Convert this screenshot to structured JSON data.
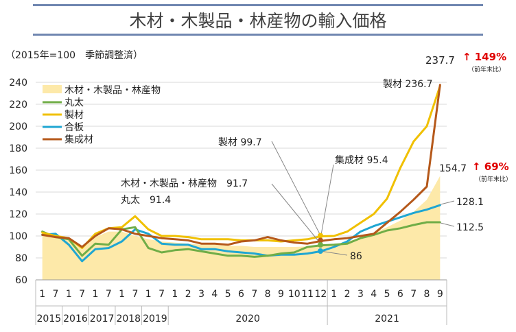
{
  "title": "木材・木製品・林産物の輸入価格",
  "subtitle": "（2015年=100　季節調整済）",
  "chart_data": {
    "type": "line",
    "ylim": [
      60,
      240
    ],
    "yticks": [
      "60",
      "80",
      "100",
      "120",
      "140",
      "160",
      "180",
      "200",
      "220",
      "240"
    ],
    "x_labels": [
      "1",
      "7",
      "1",
      "7",
      "1",
      "7",
      "1",
      "7",
      "1",
      "7",
      "1",
      "2",
      "3",
      "4",
      "5",
      "6",
      "7",
      "8",
      "9",
      "10",
      "11",
      "12",
      "1",
      "2",
      "3",
      "4",
      "5",
      "6",
      "7",
      "8",
      "9"
    ],
    "year_labels": [
      "2015",
      "2016",
      "2017",
      "2018",
      "2019",
      "2020",
      "2021"
    ],
    "legend": [
      "木材・木製品・林産物",
      "丸太",
      "製材",
      "合板",
      "集成材"
    ],
    "series": [
      {
        "name": "木材・木製品・林産物",
        "kind": "area",
        "color": "#fde9a9",
        "values": [
          102,
          101,
          97,
          90,
          99,
          104,
          104,
          100,
          97,
          95,
          94,
          93,
          92,
          92,
          91,
          91,
          90,
          90,
          90,
          90,
          90.5,
          91.7,
          92,
          95,
          98,
          103,
          108,
          114,
          122,
          133,
          154.7
        ]
      },
      {
        "name": "丸太",
        "kind": "line",
        "color": "#70ad47",
        "values": [
          104,
          99,
          97,
          82,
          93,
          92,
          106,
          108,
          89,
          85,
          87,
          88,
          86,
          84,
          82,
          82,
          81,
          82,
          84,
          85,
          90,
          91.4,
          92,
          93,
          98,
          101,
          105,
          107,
          110,
          112.5,
          112.5
        ]
      },
      {
        "name": "製材",
        "kind": "line",
        "color": "#f0c000",
        "values": [
          103,
          100,
          98,
          89,
          102,
          107,
          108,
          118,
          106,
          100,
          100,
          99,
          97,
          97,
          97,
          96,
          96,
          96,
          95,
          96,
          97,
          99.7,
          100,
          104,
          112,
          120,
          134,
          162,
          186,
          200,
          236.7
        ]
      },
      {
        "name": "合板",
        "kind": "line",
        "color": "#1fa6d2",
        "values": [
          101,
          102,
          92,
          77,
          88,
          89,
          95,
          106,
          102,
          93,
          92,
          92,
          88,
          88,
          86,
          85,
          84,
          82,
          83,
          83,
          84,
          86,
          90,
          95,
          104,
          109,
          113,
          117,
          121,
          124,
          128.1
        ]
      },
      {
        "name": "集成材",
        "kind": "line",
        "color": "#b5581a",
        "values": [
          101,
          99,
          98,
          90,
          100,
          107,
          106,
          102,
          100,
          98,
          97,
          96,
          93,
          93,
          92,
          95,
          96,
          99,
          96,
          94,
          93,
          95.4,
          97,
          98,
          100,
          102,
          112,
          122,
          133,
          145,
          237.7
        ]
      }
    ]
  },
  "annotations": {
    "a1": "製材 99.7",
    "a2": "集成材 95.4",
    "a3": "木材・木製品・林産物　91.7",
    "a4": "丸太　91.4",
    "a5": "86",
    "a6": "237.7",
    "a7": "製材  236.7",
    "a8": "154.7",
    "a9": "128.1",
    "a10": "112.5",
    "up1": "↑ 149%",
    "up2": "↑ 69%",
    "yoy": "（前年末比）"
  }
}
